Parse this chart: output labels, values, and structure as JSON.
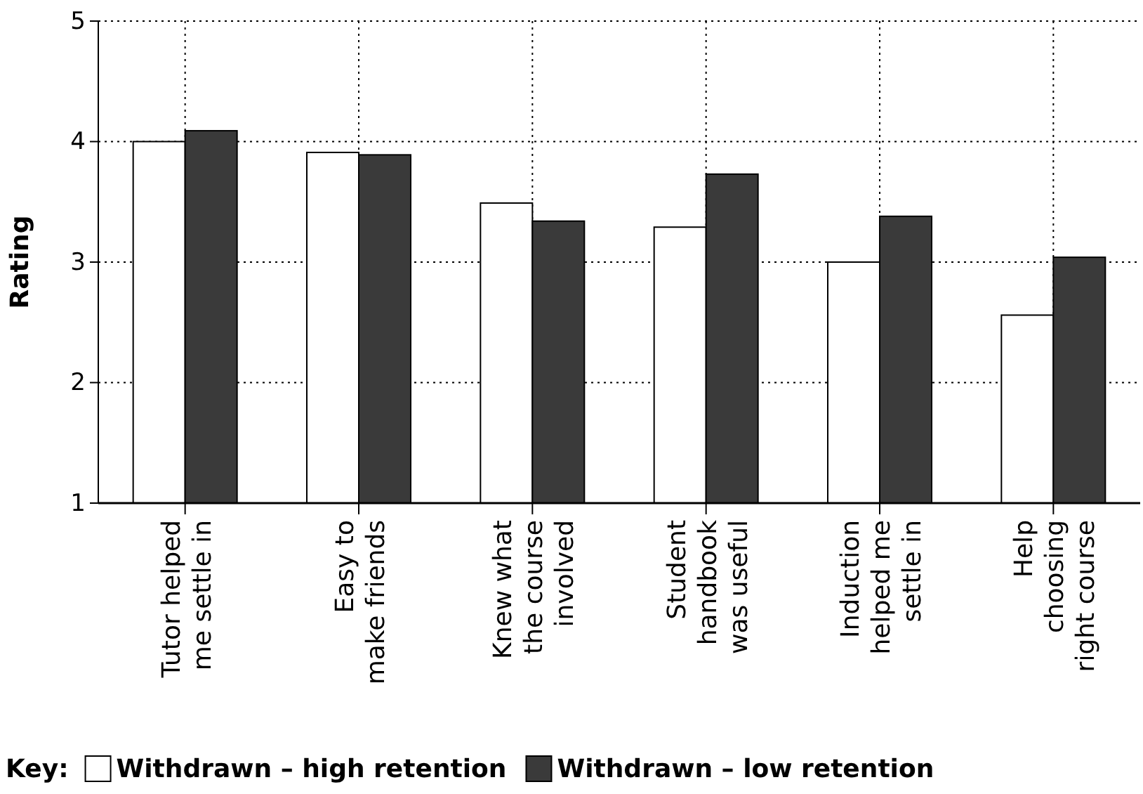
{
  "chart_data": {
    "type": "bar",
    "ylabel": "Rating",
    "legend_title": "Key:",
    "categories": [
      "Tutor helped\nme settle in",
      "Easy to\nmake friends",
      "Knew what\nthe course\ninvolved",
      "Student\nhandbook\nwas useful",
      "Induction\nhelped me\nsettle in",
      "Help\nchoosing\nright course"
    ],
    "series": [
      {
        "name": "Withdrawn – high retention",
        "color": "#ffffff",
        "values": [
          4.0,
          3.91,
          3.49,
          3.29,
          3.0,
          2.56
        ]
      },
      {
        "name": "Withdrawn – low retention",
        "color": "#3a3a3a",
        "values": [
          4.09,
          3.89,
          3.34,
          3.73,
          3.38,
          3.04
        ]
      }
    ],
    "ylim": [
      1,
      5
    ],
    "yticks": [
      1,
      2,
      3,
      4,
      5
    ],
    "grid": true,
    "legend": "bottom"
  }
}
